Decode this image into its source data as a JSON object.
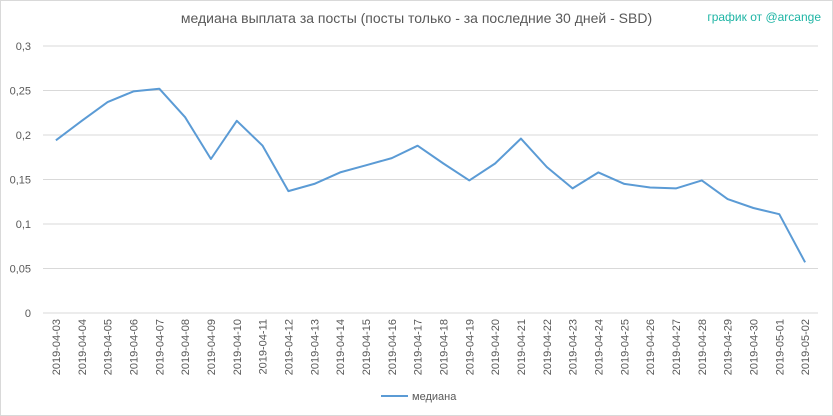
{
  "header": {
    "title": "медиана выплата за посты  (посты только - за последние 30 дней - SBD)",
    "credit": "график от @arcange"
  },
  "chart_data": {
    "type": "line",
    "title": "медиана выплата за посты  (посты только - за последние 30 дней - SBD)",
    "xlabel": "",
    "ylabel": "",
    "ylim": [
      0,
      0.3
    ],
    "y_ticks": [
      0,
      0.05,
      0.1,
      0.15,
      0.2,
      0.25,
      0.3
    ],
    "y_tick_labels": [
      "0",
      "0,05",
      "0,1",
      "0,15",
      "0,2",
      "0,25",
      "0,3"
    ],
    "grid": true,
    "legend_position": "bottom",
    "categories": [
      "2019-04-03",
      "2019-04-04",
      "2019-04-05",
      "2019-04-06",
      "2019-04-07",
      "2019-04-08",
      "2019-04-09",
      "2019-04-10",
      "2019-04-11",
      "2019-04-12",
      "2019-04-13",
      "2019-04-14",
      "2019-04-15",
      "2019-04-16",
      "2019-04-17",
      "2019-04-18",
      "2019-04-19",
      "2019-04-20",
      "2019-04-21",
      "2019-04-22",
      "2019-04-23",
      "2019-04-24",
      "2019-04-25",
      "2019-04-26",
      "2019-04-27",
      "2019-04-28",
      "2019-04-29",
      "2019-04-30",
      "2019-05-01",
      "2019-05-02"
    ],
    "series": [
      {
        "name": "медиана",
        "color": "#5b9bd5",
        "values": [
          0.194,
          0.216,
          0.237,
          0.249,
          0.252,
          0.22,
          0.173,
          0.216,
          0.188,
          0.137,
          0.145,
          0.158,
          0.166,
          0.174,
          0.188,
          0.168,
          0.149,
          0.168,
          0.196,
          0.164,
          0.14,
          0.158,
          0.145,
          0.141,
          0.14,
          0.149,
          0.128,
          0.118,
          0.111,
          0.057
        ]
      }
    ]
  },
  "colors": {
    "grid": "#d9d9d9",
    "text": "#595959",
    "credit": "#1fb5a5"
  }
}
